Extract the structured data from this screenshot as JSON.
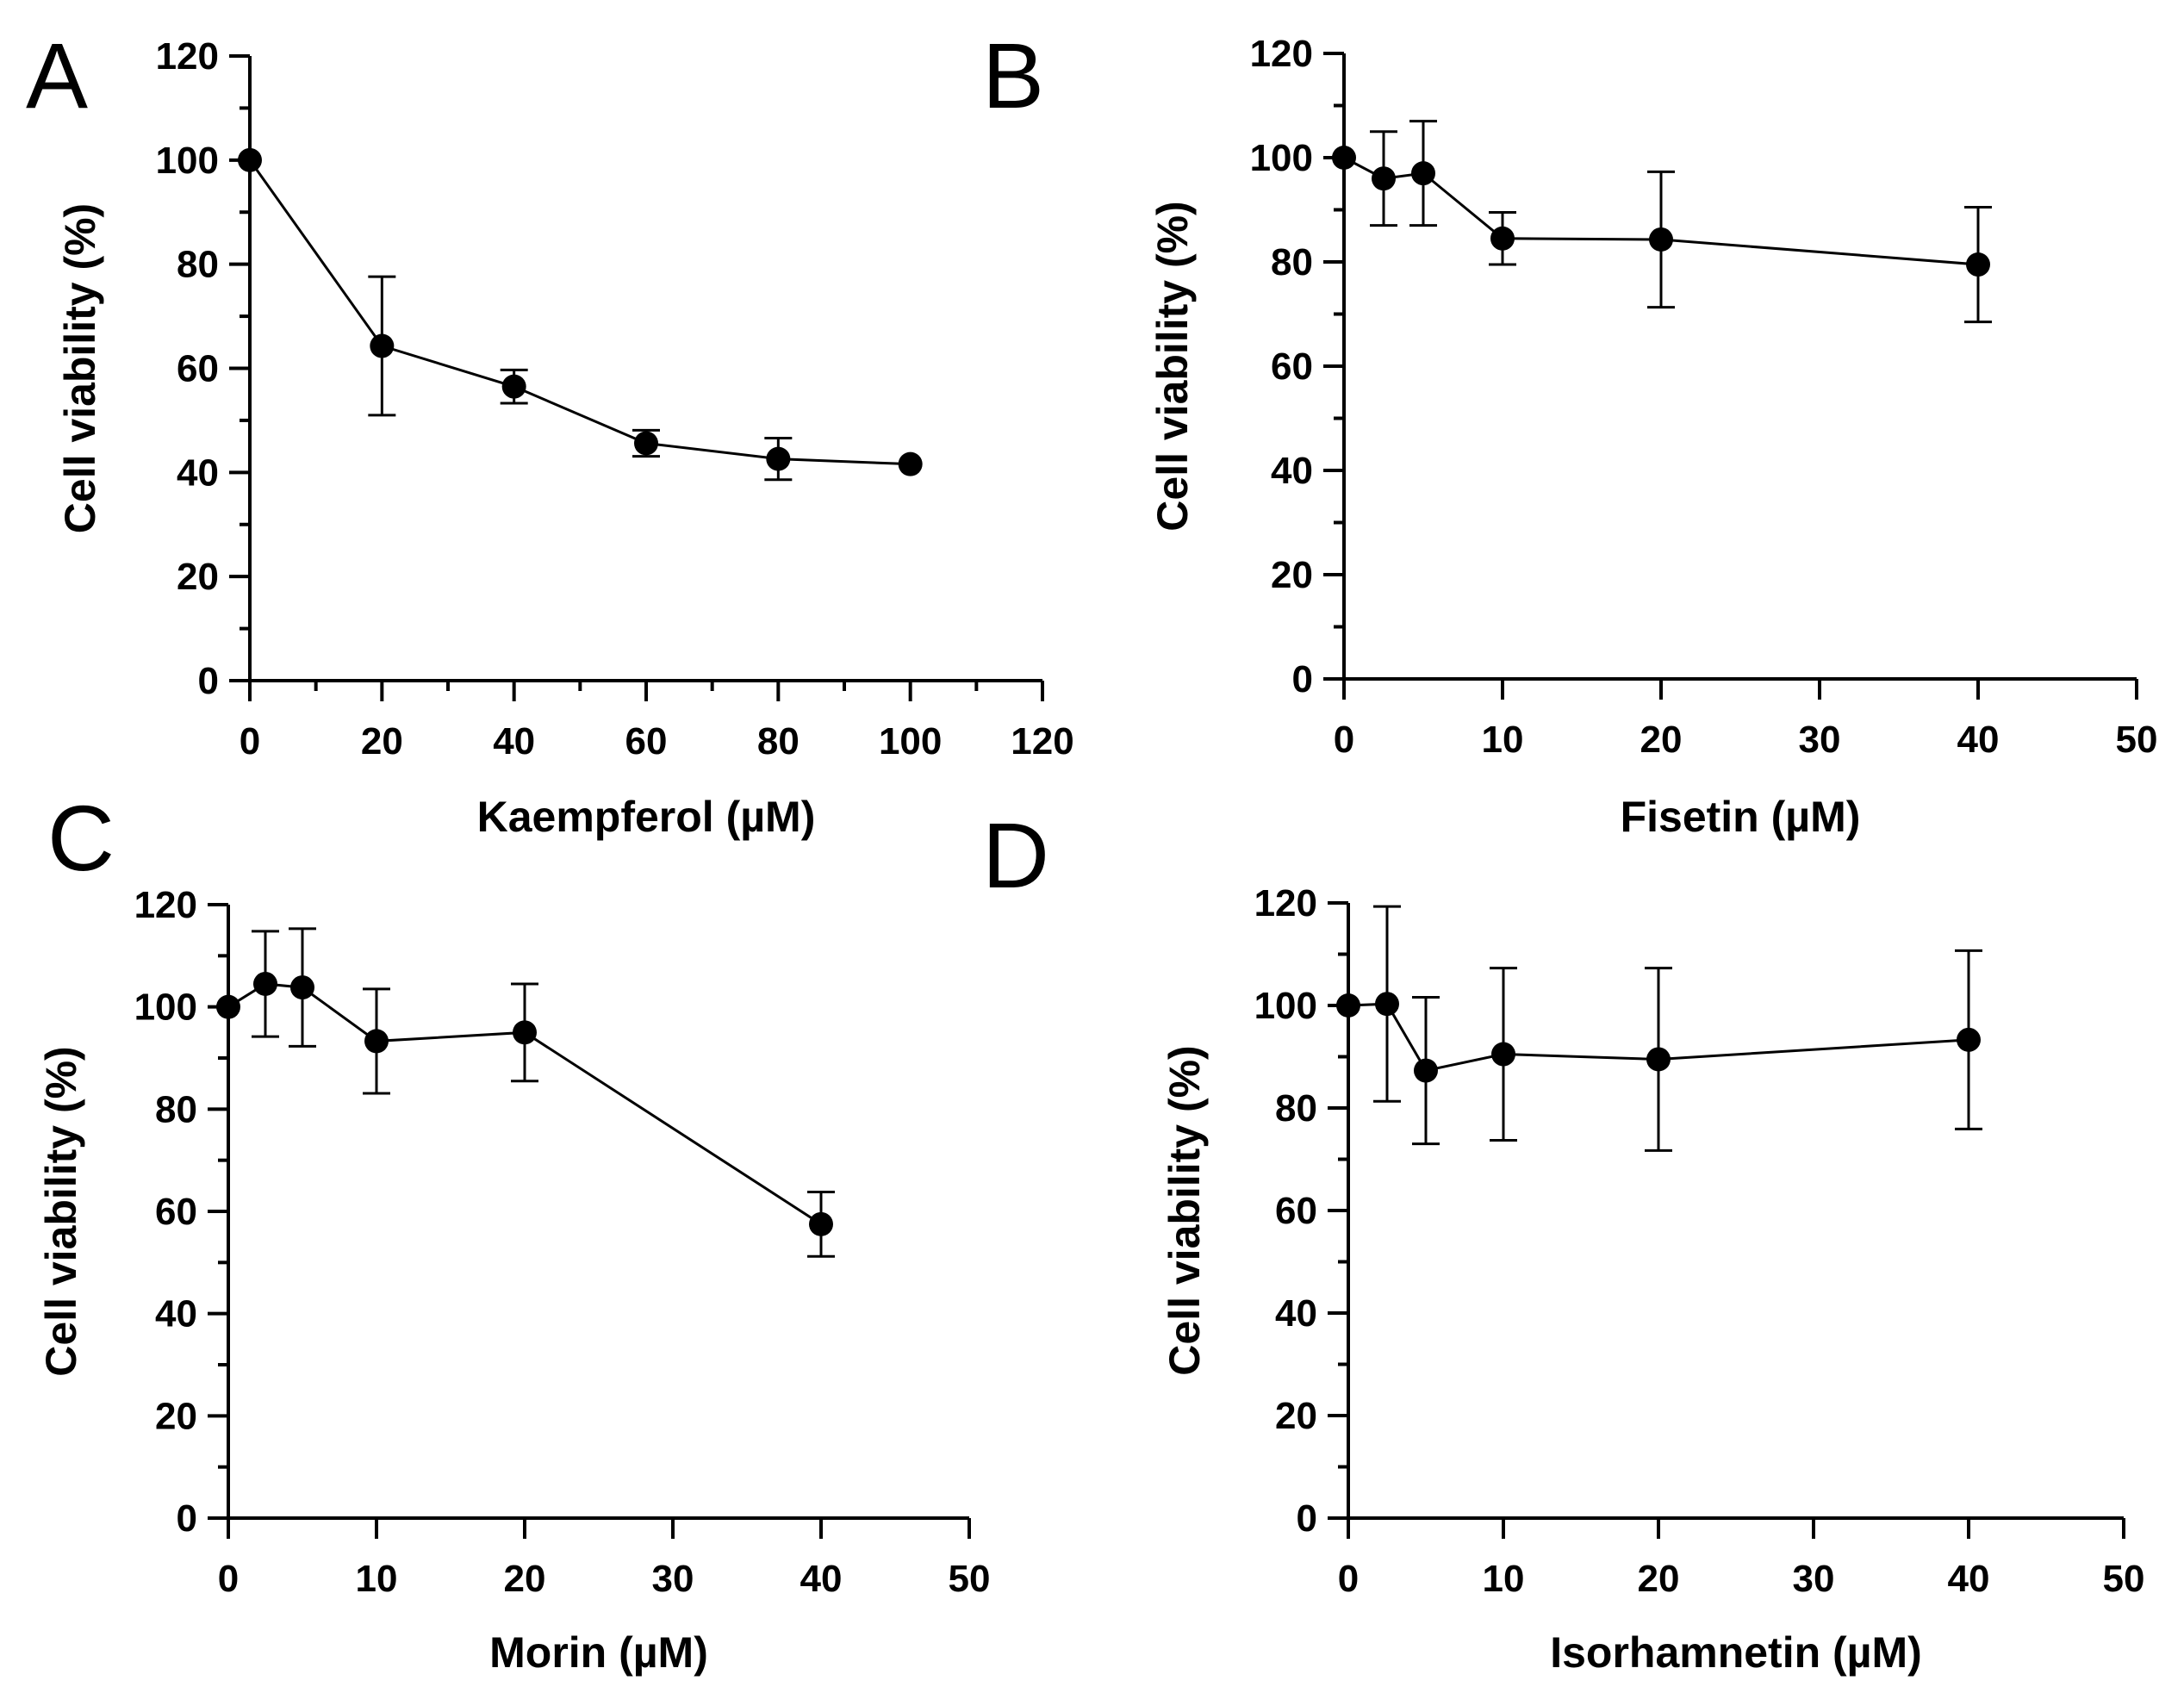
{
  "chart_data": [
    {
      "panel": "A",
      "type": "line",
      "xlabel": "Kaempferol (µM)",
      "ylabel": "Cell viability  (%)",
      "xlim": [
        0,
        120
      ],
      "ylim": [
        0,
        120
      ],
      "xticks": [
        0,
        20,
        40,
        60,
        80,
        100,
        120
      ],
      "yticks": [
        0,
        20,
        40,
        60,
        80,
        100,
        120
      ],
      "x_minor_step": 10,
      "y_minor_step": 10,
      "series": [
        {
          "name": "Kaempferol",
          "x": [
            0,
            20,
            40,
            60,
            80,
            100
          ],
          "y": [
            100,
            64.3,
            56.5,
            45.6,
            42.6,
            41.6
          ],
          "err": [
            0,
            13.3,
            3.2,
            2.5,
            4.0,
            0
          ]
        }
      ]
    },
    {
      "panel": "B",
      "type": "line",
      "xlabel": "Fisetin (µM)",
      "ylabel": "Cell viability  (%)",
      "xlim": [
        0,
        50
      ],
      "ylim": [
        0,
        120
      ],
      "xticks": [
        0,
        10,
        20,
        30,
        40,
        50
      ],
      "yticks": [
        0,
        20,
        40,
        60,
        80,
        100,
        120
      ],
      "x_minor_step": 0,
      "y_minor_step": 10,
      "series": [
        {
          "name": "Fisetin",
          "x": [
            0,
            2.5,
            5,
            10,
            20,
            40
          ],
          "y": [
            100,
            96,
            97,
            84.5,
            84.3,
            79.5
          ],
          "err": [
            0,
            9,
            10,
            5,
            13,
            11
          ]
        }
      ]
    },
    {
      "panel": "C",
      "type": "line",
      "xlabel": "Morin (µM)",
      "ylabel": "Cell viability  (%)",
      "xlim": [
        0,
        50
      ],
      "ylim": [
        0,
        120
      ],
      "xticks": [
        0,
        10,
        20,
        30,
        40,
        50
      ],
      "yticks": [
        0,
        20,
        40,
        60,
        80,
        100,
        120
      ],
      "x_minor_step": 0,
      "y_minor_step": 10,
      "series": [
        {
          "name": "Morin",
          "x": [
            0,
            2.5,
            5,
            10,
            20,
            40
          ],
          "y": [
            100,
            104.5,
            103.8,
            93.3,
            95,
            57.5
          ],
          "err": [
            0,
            10.3,
            11.5,
            10.2,
            9.5,
            6.3
          ]
        }
      ]
    },
    {
      "panel": "D",
      "type": "line",
      "xlabel": "Isorhamnetin (µM)",
      "ylabel": "Cell viability  (%)",
      "xlim": [
        0,
        50
      ],
      "ylim": [
        0,
        120
      ],
      "xticks": [
        0,
        10,
        20,
        30,
        40,
        50
      ],
      "yticks": [
        0,
        20,
        40,
        60,
        80,
        100,
        120
      ],
      "x_minor_step": 0,
      "y_minor_step": 10,
      "series": [
        {
          "name": "Isorhamnetin",
          "x": [
            0,
            2.5,
            5,
            10,
            20,
            40
          ],
          "y": [
            100,
            100.3,
            87.3,
            90.5,
            89.5,
            93.3
          ],
          "err": [
            0,
            19,
            14.3,
            16.8,
            17.8,
            17.4
          ]
        }
      ]
    }
  ]
}
